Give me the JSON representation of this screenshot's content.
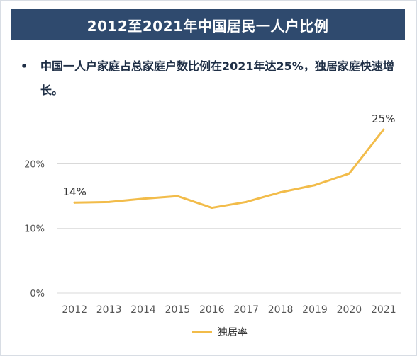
{
  "header": {
    "title": "2012至2021年中国居民一人户比例"
  },
  "summary": {
    "bullet": "•",
    "text": "中国一人户家庭占总家庭户数比例在2021年达25%，独居家庭快速增长。"
  },
  "colors": {
    "title_bg": "#2f4a6e",
    "line": "#f2bc4a",
    "grid": "#d9d9d9",
    "axis_text": "#555555"
  },
  "chart_data": {
    "type": "line",
    "categories": [
      "2012",
      "2013",
      "2014",
      "2015",
      "2016",
      "2017",
      "2018",
      "2019",
      "2020",
      "2021"
    ],
    "series": [
      {
        "name": "独居率",
        "values": [
          14.0,
          14.1,
          14.6,
          15.0,
          13.2,
          14.1,
          15.6,
          16.7,
          18.5,
          25.3
        ]
      }
    ],
    "annotations": [
      {
        "category": "2012",
        "label": "14%"
      },
      {
        "category": "2021",
        "label": "25%"
      }
    ],
    "y_ticks": [
      "0%",
      "10%",
      "20%"
    ],
    "ylim": [
      0,
      25
    ],
    "grid": true,
    "legend_position": "bottom-center"
  }
}
